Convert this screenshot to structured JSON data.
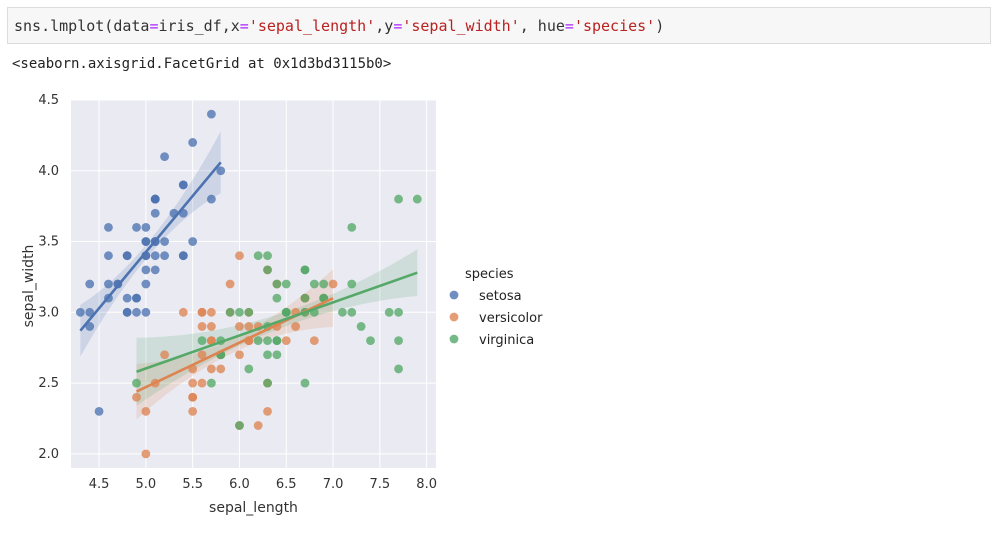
{
  "code": {
    "func": "sns.lmplot(data",
    "eq1": "=",
    "arg1": "iris_df,x",
    "eq2": "=",
    "xval": "'sepal_length'",
    "mid": ",y",
    "eq3": "=",
    "yval": "'sepal_width'",
    "mid2": ", hue",
    "eq4": "=",
    "hueval": "'species'",
    "close": ")"
  },
  "output_text": "<seaborn.axisgrid.FacetGrid at 0x1d3bd3115b0>",
  "colors": {
    "plot_bg": "#eaeaf2",
    "grid": "#ffffff",
    "setosa": "#4c72b0",
    "versicolor": "#dd8452",
    "virginica": "#55a868"
  },
  "chart_data": {
    "type": "scatter",
    "xlabel": "sepal_length",
    "ylabel": "sepal_width",
    "xlim": [
      4.2,
      8.1
    ],
    "ylim": [
      1.9,
      4.5
    ],
    "xticks": [
      "4.5",
      "5.0",
      "5.5",
      "6.0",
      "6.5",
      "7.0",
      "7.5",
      "8.0"
    ],
    "yticks": [
      "2.0",
      "2.5",
      "3.0",
      "3.5",
      "4.0",
      "4.5"
    ],
    "legend_title": "species",
    "legend_position": "right",
    "grid": true,
    "series": [
      {
        "name": "setosa",
        "color": "#4c72b0",
        "fit": [
          [
            4.3,
            2.87
          ],
          [
            5.8,
            4.06
          ]
        ],
        "points": [
          [
            5.1,
            3.5
          ],
          [
            4.9,
            3.0
          ],
          [
            4.7,
            3.2
          ],
          [
            4.6,
            3.1
          ],
          [
            5.0,
            3.6
          ],
          [
            5.4,
            3.9
          ],
          [
            4.6,
            3.4
          ],
          [
            5.0,
            3.4
          ],
          [
            4.4,
            2.9
          ],
          [
            4.9,
            3.1
          ],
          [
            5.4,
            3.7
          ],
          [
            4.8,
            3.4
          ],
          [
            4.8,
            3.0
          ],
          [
            4.3,
            3.0
          ],
          [
            5.8,
            4.0
          ],
          [
            5.7,
            4.4
          ],
          [
            5.4,
            3.9
          ],
          [
            5.1,
            3.5
          ],
          [
            5.7,
            3.8
          ],
          [
            5.1,
            3.8
          ],
          [
            5.4,
            3.4
          ],
          [
            5.1,
            3.7
          ],
          [
            4.6,
            3.6
          ],
          [
            5.1,
            3.3
          ],
          [
            4.8,
            3.4
          ],
          [
            5.0,
            3.0
          ],
          [
            5.0,
            3.4
          ],
          [
            5.2,
            3.5
          ],
          [
            5.2,
            3.4
          ],
          [
            4.7,
            3.2
          ],
          [
            4.8,
            3.1
          ],
          [
            5.4,
            3.4
          ],
          [
            5.2,
            4.1
          ],
          [
            5.5,
            4.2
          ],
          [
            4.9,
            3.1
          ],
          [
            5.0,
            3.2
          ],
          [
            5.5,
            3.5
          ],
          [
            4.9,
            3.6
          ],
          [
            4.4,
            3.0
          ],
          [
            5.1,
            3.4
          ],
          [
            5.0,
            3.5
          ],
          [
            4.5,
            2.3
          ],
          [
            4.4,
            3.2
          ],
          [
            5.0,
            3.5
          ],
          [
            5.1,
            3.8
          ],
          [
            4.8,
            3.0
          ],
          [
            5.1,
            3.8
          ],
          [
            4.6,
            3.2
          ],
          [
            5.3,
            3.7
          ],
          [
            5.0,
            3.3
          ]
        ]
      },
      {
        "name": "versicolor",
        "color": "#dd8452",
        "fit": [
          [
            4.9,
            2.44
          ],
          [
            7.0,
            3.1
          ]
        ],
        "points": [
          [
            7.0,
            3.2
          ],
          [
            6.4,
            3.2
          ],
          [
            6.9,
            3.1
          ],
          [
            5.5,
            2.3
          ],
          [
            6.5,
            2.8
          ],
          [
            5.7,
            2.8
          ],
          [
            6.3,
            3.3
          ],
          [
            4.9,
            2.4
          ],
          [
            6.6,
            2.9
          ],
          [
            5.2,
            2.7
          ],
          [
            5.0,
            2.0
          ],
          [
            5.9,
            3.0
          ],
          [
            6.0,
            2.2
          ],
          [
            6.1,
            2.9
          ],
          [
            5.6,
            2.9
          ],
          [
            6.7,
            3.1
          ],
          [
            5.6,
            3.0
          ],
          [
            5.8,
            2.7
          ],
          [
            6.2,
            2.2
          ],
          [
            5.6,
            2.5
          ],
          [
            5.9,
            3.2
          ],
          [
            6.1,
            2.8
          ],
          [
            6.3,
            2.5
          ],
          [
            6.1,
            2.8
          ],
          [
            6.4,
            2.9
          ],
          [
            6.6,
            3.0
          ],
          [
            6.8,
            2.8
          ],
          [
            6.7,
            3.0
          ],
          [
            6.0,
            2.9
          ],
          [
            5.7,
            2.6
          ],
          [
            5.5,
            2.4
          ],
          [
            5.5,
            2.4
          ],
          [
            5.8,
            2.7
          ],
          [
            6.0,
            2.7
          ],
          [
            5.4,
            3.0
          ],
          [
            6.0,
            3.4
          ],
          [
            6.7,
            3.1
          ],
          [
            6.3,
            2.3
          ],
          [
            5.6,
            3.0
          ],
          [
            5.5,
            2.5
          ],
          [
            5.5,
            2.6
          ],
          [
            6.1,
            3.0
          ],
          [
            5.8,
            2.6
          ],
          [
            5.0,
            2.3
          ],
          [
            5.6,
            2.7
          ],
          [
            5.7,
            3.0
          ],
          [
            5.7,
            2.9
          ],
          [
            6.2,
            2.9
          ],
          [
            5.1,
            2.5
          ],
          [
            5.7,
            2.8
          ]
        ]
      },
      {
        "name": "virginica",
        "color": "#55a868",
        "fit": [
          [
            4.9,
            2.58
          ],
          [
            7.9,
            3.28
          ]
        ],
        "points": [
          [
            6.3,
            3.3
          ],
          [
            5.8,
            2.7
          ],
          [
            7.1,
            3.0
          ],
          [
            6.3,
            2.9
          ],
          [
            6.5,
            3.0
          ],
          [
            7.6,
            3.0
          ],
          [
            4.9,
            2.5
          ],
          [
            7.3,
            2.9
          ],
          [
            6.7,
            2.5
          ],
          [
            7.2,
            3.6
          ],
          [
            6.5,
            3.2
          ],
          [
            6.4,
            2.7
          ],
          [
            6.8,
            3.0
          ],
          [
            5.7,
            2.5
          ],
          [
            5.8,
            2.8
          ],
          [
            6.4,
            3.2
          ],
          [
            6.5,
            3.0
          ],
          [
            7.7,
            3.8
          ],
          [
            7.7,
            2.6
          ],
          [
            6.0,
            2.2
          ],
          [
            6.9,
            3.2
          ],
          [
            5.6,
            2.8
          ],
          [
            7.7,
            2.8
          ],
          [
            6.3,
            2.7
          ],
          [
            6.7,
            3.3
          ],
          [
            7.2,
            3.2
          ],
          [
            6.2,
            2.8
          ],
          [
            6.1,
            3.0
          ],
          [
            6.4,
            2.8
          ],
          [
            7.2,
            3.0
          ],
          [
            7.4,
            2.8
          ],
          [
            7.9,
            3.8
          ],
          [
            6.4,
            2.8
          ],
          [
            6.3,
            2.8
          ],
          [
            6.1,
            2.6
          ],
          [
            7.7,
            3.0
          ],
          [
            6.3,
            3.4
          ],
          [
            6.4,
            3.1
          ],
          [
            6.0,
            3.0
          ],
          [
            6.9,
            3.1
          ],
          [
            6.7,
            3.1
          ],
          [
            6.9,
            3.1
          ],
          [
            5.8,
            2.7
          ],
          [
            6.8,
            3.2
          ],
          [
            6.7,
            3.3
          ],
          [
            6.7,
            3.0
          ],
          [
            6.3,
            2.5
          ],
          [
            6.5,
            3.0
          ],
          [
            6.2,
            3.4
          ],
          [
            5.9,
            3.0
          ]
        ]
      }
    ]
  }
}
